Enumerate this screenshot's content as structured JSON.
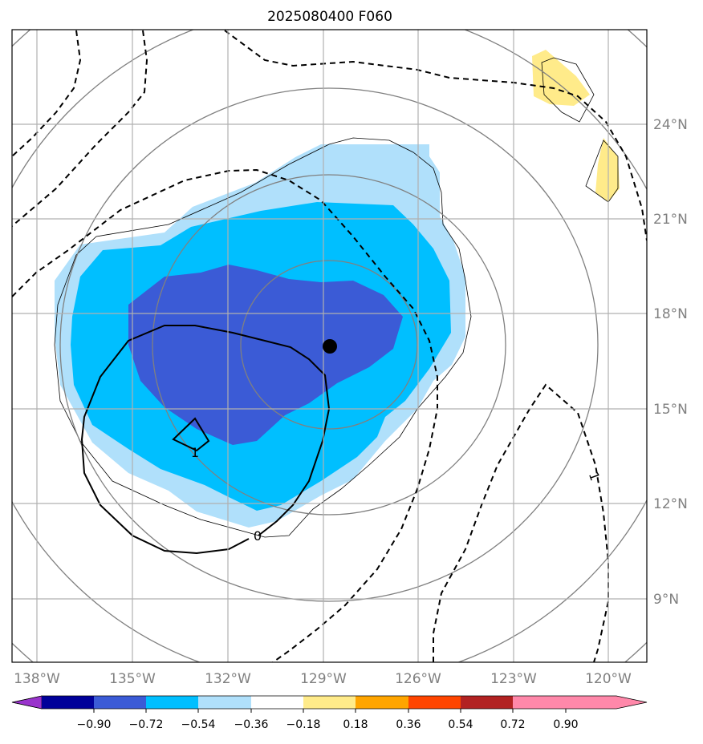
{
  "title": "2025080400 F060",
  "map": {
    "lon_ticks": [
      "138°W",
      "135°W",
      "132°W",
      "129°W",
      "126°W",
      "123°W",
      "120°W"
    ],
    "lat_ticks": [
      "24°N",
      "21°N",
      "18°N",
      "15°N",
      "12°N",
      "9°N"
    ],
    "center_marker": {
      "lon": -128.8,
      "lat": 17.0
    },
    "contour_labels": [
      {
        "text": "1",
        "kind": "solid-upper-left"
      },
      {
        "text": "0",
        "kind": "solid-bottom"
      },
      {
        "text": "1",
        "kind": "dashed-right"
      }
    ]
  },
  "colorbar": {
    "colors": [
      "#9933cc",
      "#000099",
      "#3b5bd6",
      "#00bfff",
      "#b0e0fb",
      "#ffffff",
      "#ffeb8a",
      "#ffa500",
      "#ff4500",
      "#b22222",
      "#ff88aa"
    ],
    "tick_labels": [
      "−0.90",
      "−0.72",
      "−0.54",
      "−0.36",
      "−0.18",
      "0.18",
      "0.36",
      "0.54",
      "0.72",
      "0.90"
    ]
  }
}
